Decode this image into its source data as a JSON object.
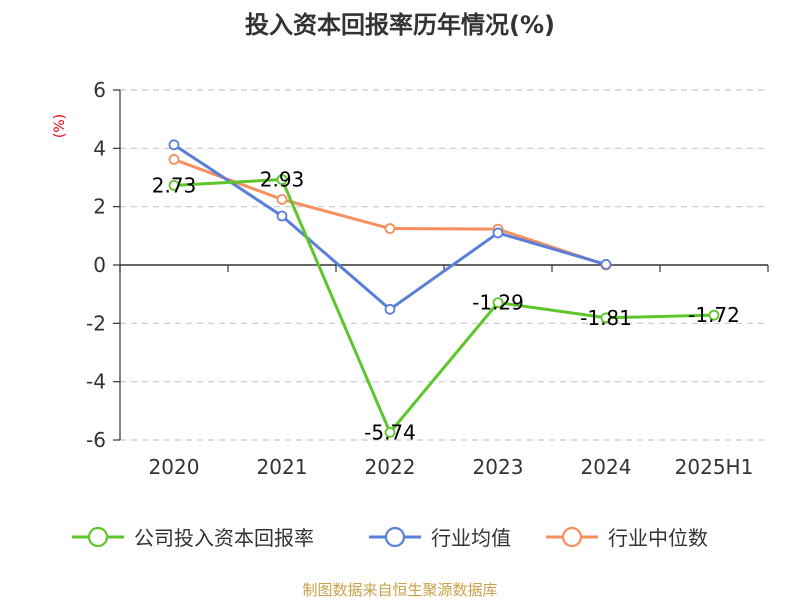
{
  "title": "投入资本回报率历年情况(%)",
  "y_unit": "(%)",
  "source": "制图数据来自恒生聚源数据库",
  "chart_data": {
    "type": "line",
    "categories": [
      "2020",
      "2021",
      "2022",
      "2023",
      "2024",
      "2025H1"
    ],
    "ylim": [
      -6,
      6
    ],
    "yticks": [
      6,
      4,
      2,
      0,
      -2,
      -4,
      -6
    ],
    "grid": true,
    "legend_position": "bottom",
    "series": [
      {
        "name": "公司投入资本回报率",
        "color": "#5ec52a",
        "values": [
          2.73,
          2.93,
          -5.74,
          -1.29,
          -1.81,
          -1.72
        ],
        "labels": [
          "2.73",
          "2.93",
          "-5.74",
          "-1.29",
          "-1.81",
          "-1.72"
        ]
      },
      {
        "name": "行业均值",
        "color": "#5a7fd8",
        "values": [
          4.12,
          1.68,
          -1.52,
          1.1,
          0.02,
          null
        ]
      },
      {
        "name": "行业中位数",
        "color": "#f58f5e",
        "values": [
          3.62,
          2.25,
          1.25,
          1.23,
          0.0,
          null
        ]
      }
    ]
  }
}
